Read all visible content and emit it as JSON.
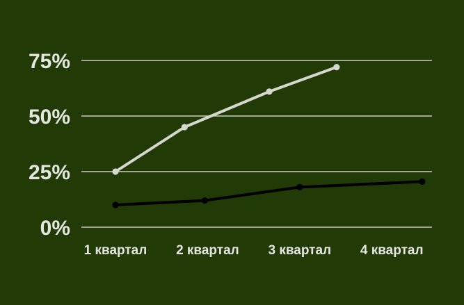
{
  "chart_data": {
    "type": "line",
    "title": "",
    "xlabel": "",
    "ylabel": "",
    "categories": [
      "1 квартал",
      "2 квартал",
      "3 квартал",
      "4 квартал"
    ],
    "y_ticks": [
      "0%",
      "25%",
      "50%",
      "75%"
    ],
    "ylim": [
      0,
      75
    ],
    "grid": true,
    "legend": "none",
    "series": [
      {
        "color": "#d6d8d0",
        "x": [
          "1 квартал",
          "1,75 квартал",
          "2,67 квартал",
          "3,4 квартал"
        ],
        "values": [
          25,
          45,
          61,
          72
        ]
      },
      {
        "color": "#000000",
        "x": [
          "1 квартал",
          "1,97 квартал",
          "3 квартал",
          "4,33 квартал"
        ],
        "values": [
          10,
          12,
          18,
          20.5
        ]
      }
    ],
    "series_x_positions": [
      [
        1,
        1.75,
        2.67,
        3.4
      ],
      [
        1,
        1.97,
        3,
        4.33
      ]
    ]
  },
  "colors": {
    "background": "#223a06",
    "text": "#e4e6e0",
    "grid": "#e9ebe5"
  }
}
